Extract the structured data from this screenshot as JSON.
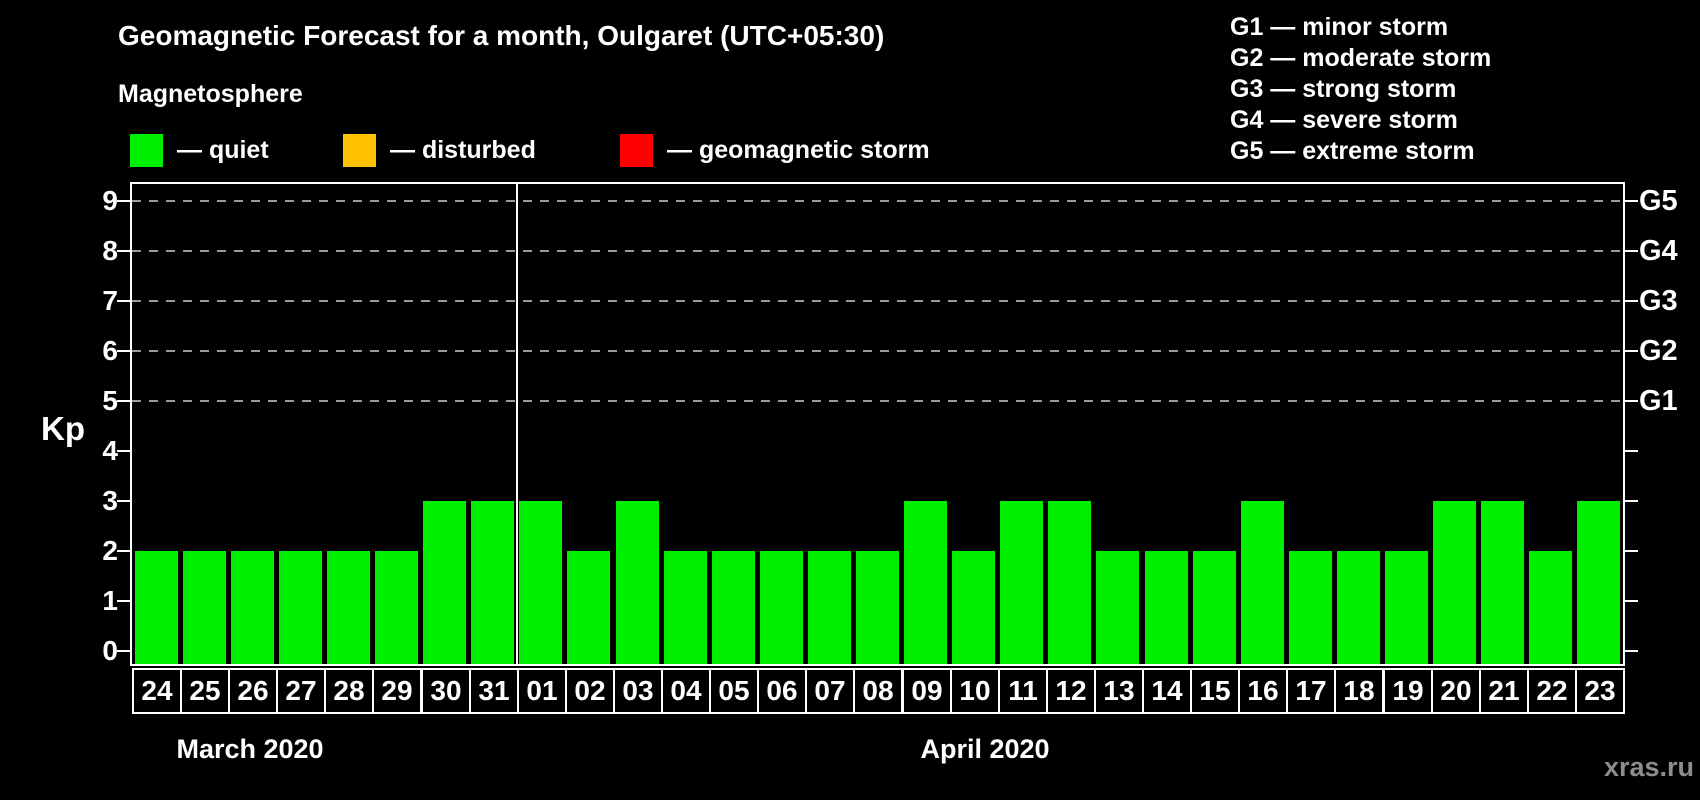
{
  "title": "Geomagnetic Forecast for a month, Oulgaret (UTC+05:30)",
  "subtitle": "Magnetosphere",
  "legend": [
    {
      "name": "quiet",
      "label": "— quiet",
      "color": "#00EE00"
    },
    {
      "name": "disturbed",
      "label": "— disturbed",
      "color": "#FFC000"
    },
    {
      "name": "geomagnetic-storm",
      "label": "— geomagnetic storm",
      "color": "#FF0000"
    }
  ],
  "g_legend": [
    "G1 — minor storm",
    "G2 — moderate storm",
    "G3 — strong storm",
    "G4 — severe storm",
    "G5 — extreme storm"
  ],
  "watermark": "xras.ru",
  "chart_data": {
    "type": "bar",
    "title": "Geomagnetic Forecast for a month, Oulgaret (UTC+05:30)",
    "ylabel": "Kp",
    "ylim": [
      0,
      9
    ],
    "yticks": [
      0,
      1,
      2,
      3,
      4,
      5,
      6,
      7,
      8,
      9
    ],
    "gridlines_at_kp": [
      5,
      6,
      7,
      8,
      9
    ],
    "grid": "dashed-horizontal",
    "right_axis": [
      {
        "label": "G1",
        "kp": 5
      },
      {
        "label": "G2",
        "kp": 6
      },
      {
        "label": "G3",
        "kp": 7
      },
      {
        "label": "G4",
        "kp": 8
      },
      {
        "label": "G5",
        "kp": 9
      }
    ],
    "months": [
      {
        "label": "March 2020",
        "categories": [
          "24",
          "25",
          "26",
          "27",
          "28",
          "29",
          "30",
          "31"
        ],
        "values": [
          2,
          2,
          2,
          2,
          2,
          2,
          3,
          3
        ]
      },
      {
        "label": "April 2020",
        "categories": [
          "01",
          "02",
          "03",
          "04",
          "05",
          "06",
          "07",
          "08",
          "09",
          "10",
          "11",
          "12",
          "13",
          "14",
          "15",
          "16",
          "17",
          "18",
          "19",
          "20",
          "21",
          "22",
          "23"
        ],
        "values": [
          3,
          2,
          3,
          2,
          2,
          2,
          2,
          2,
          3,
          2,
          3,
          3,
          2,
          2,
          2,
          3,
          2,
          2,
          2,
          3,
          3,
          2,
          3
        ]
      }
    ]
  }
}
